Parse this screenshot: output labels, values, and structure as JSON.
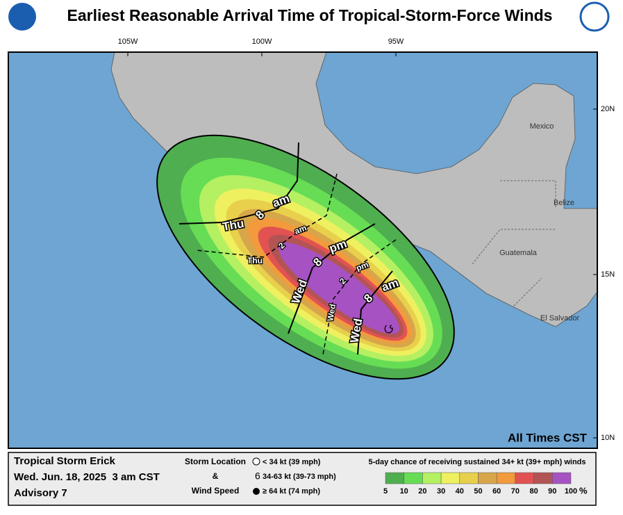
{
  "header": {
    "title": "Earliest Reasonable Arrival Time of Tropical-Storm-Force Winds"
  },
  "map": {
    "lon_labels": [
      "105W",
      "100W",
      "95W"
    ],
    "lat_labels": [
      "20N",
      "15N",
      "10N"
    ],
    "places": [
      "Mexico",
      "Belize",
      "Guatemala",
      "El Salvador"
    ],
    "time_note": "All Times CST",
    "arrival_labels": [
      {
        "day": "Thu",
        "hour": "8",
        "ampm": "am"
      },
      {
        "day": "Thu",
        "hour": "2",
        "ampm": "am"
      },
      {
        "day": "Wed",
        "hour": "8",
        "ampm": "pm"
      },
      {
        "day": "Wed",
        "hour": "2",
        "ampm": "pm"
      },
      {
        "day": "Wed",
        "hour": "8",
        "ampm": "am"
      }
    ]
  },
  "legend": {
    "storm": "Tropical Storm Erick",
    "time": "Wed. Jun. 18, 2025  3 am CST",
    "advisory": "Advisory 7",
    "key_title": [
      "Storm Location",
      "&",
      "Wind Speed"
    ],
    "key_items": [
      "< 34 kt (39 mph)",
      "34-63 kt (39-73 mph)",
      "≥ 64 kt (74 mph)"
    ],
    "scale_title": "5-day chance of receiving sustained 34+ kt (39+ mph) winds",
    "scale_labels": [
      "5",
      "10",
      "20",
      "30",
      "40",
      "50",
      "60",
      "70",
      "80",
      "90",
      "100"
    ],
    "scale_unit": "%",
    "scale_colors": [
      "#4fae4f",
      "#66dd55",
      "#b4f062",
      "#eef060",
      "#e8d04c",
      "#d8a64a",
      "#f29a3c",
      "#e25252",
      "#b25454",
      "#a652c2"
    ]
  }
}
